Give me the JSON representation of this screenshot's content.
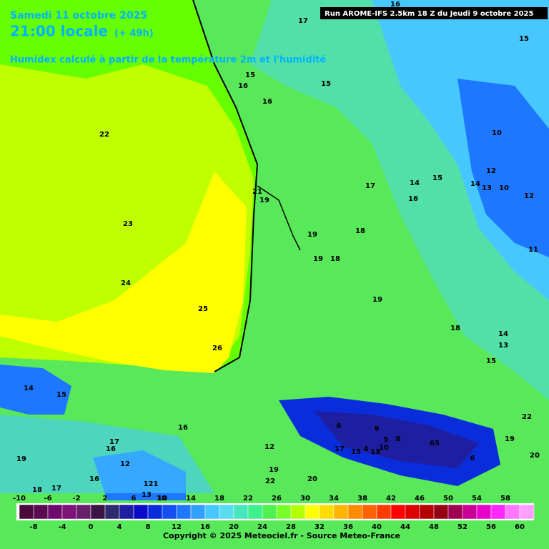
{
  "header": {
    "date": "Samedi 11 octobre 2025",
    "time": "21:00 locale",
    "lead": "(+ 49h)",
    "subtitle": "Humidex calculé à partir de la température 2m et l'humidité",
    "run": "Run AROME-IFS 2.5km 18 Z du Jeudi 9 octobre 2025"
  },
  "contour_labels": [
    16,
    17,
    15,
    15,
    16,
    15,
    16,
    22,
    10,
    12,
    15,
    14,
    14,
    13,
    10,
    12,
    17,
    21,
    19,
    16,
    23,
    18,
    19,
    11,
    19,
    18,
    24,
    19,
    25,
    18,
    14,
    13,
    26,
    15,
    14,
    15,
    22,
    6,
    16,
    9,
    17,
    16,
    5,
    8,
    65,
    19,
    12,
    17,
    15,
    4,
    13,
    10,
    6,
    19,
    20,
    12,
    19,
    16,
    22,
    20,
    121,
    18,
    17,
    13,
    10
  ],
  "colorbar": {
    "top_labels": [
      -10,
      -6,
      -2,
      2,
      6,
      10,
      14,
      18,
      22,
      26,
      30,
      34,
      38,
      42,
      46,
      50,
      54,
      58
    ],
    "bottom_labels": [
      -8,
      -4,
      0,
      4,
      8,
      12,
      16,
      20,
      24,
      28,
      32,
      36,
      40,
      44,
      48,
      52,
      56,
      60
    ],
    "colors": [
      "#4b0a3c",
      "#5a0a50",
      "#6e0a6e",
      "#7d1478",
      "#6a1f6a",
      "#3c1446",
      "#2c2c6e",
      "#1e1ea0",
      "#0a0ac8",
      "#0a2ddc",
      "#1450f0",
      "#1e78ff",
      "#32a0ff",
      "#46c8ff",
      "#5adcf0",
      "#46e6be",
      "#3cf08c",
      "#50f050",
      "#78ff28",
      "#b4ff00",
      "#ffff00",
      "#ffdc00",
      "#ffb400",
      "#ff8c00",
      "#ff6400",
      "#ff3c00",
      "#ff0000",
      "#dc0000",
      "#b40000",
      "#960014",
      "#a00050",
      "#c80096",
      "#e600c8",
      "#ff28ff",
      "#ff78ff",
      "#ffa0ff"
    ]
  },
  "footer": {
    "copyright": "Copyright © 2025 Meteociel.fr - Source Meteo-France"
  }
}
